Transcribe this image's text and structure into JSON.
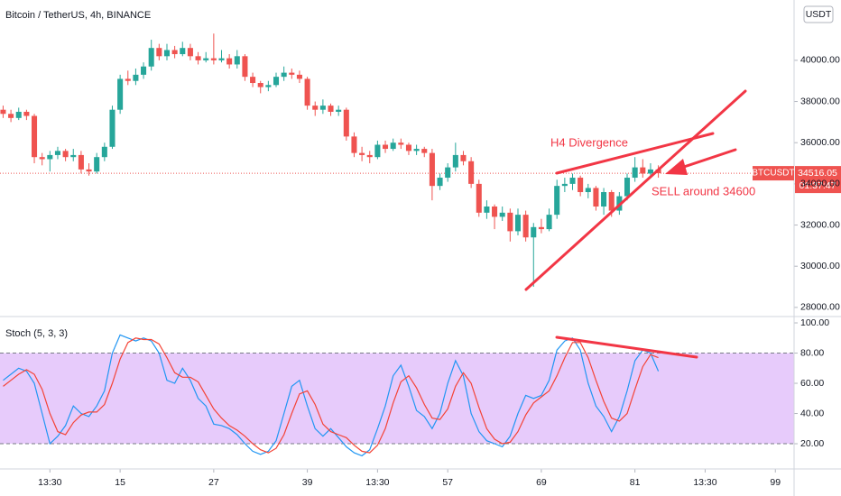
{
  "chart_data": [
    {
      "type": "candlestick",
      "title": "Bitcoin / TetherUS, 4h, BINANCE",
      "currency": "USDT",
      "symbol_tag": "BTCUSDT",
      "countdown": "01:37:47",
      "annotations": [
        "H4 Divergence",
        "SELL around 34600"
      ],
      "up_color": "#26a69a",
      "down_color": "#ef5350",
      "xlim": [
        -0.4,
        101.4
      ],
      "ylim": [
        27600,
        42930
      ],
      "yticks": [
        {
          "value": 28000,
          "label": "28000.00"
        },
        {
          "value": 30000,
          "label": "30000.00"
        },
        {
          "value": 32000,
          "label": "32000.00"
        },
        {
          "value": 34000,
          "label": "34000.00"
        },
        {
          "value": 36000,
          "label": "36000.00"
        },
        {
          "value": 38000,
          "label": "38000.00"
        },
        {
          "value": 40000,
          "label": "40000.00"
        }
      ],
      "candles": [
        [
          37600,
          37800,
          37200,
          37400
        ],
        [
          37400,
          37600,
          37000,
          37200
        ],
        [
          37200,
          37700,
          37100,
          37500
        ],
        [
          37500,
          37600,
          37100,
          37300
        ],
        [
          37300,
          37400,
          35000,
          35300
        ],
        [
          35300,
          35500,
          34900,
          35200
        ],
        [
          35200,
          35600,
          34600,
          35400
        ],
        [
          35400,
          35800,
          35200,
          35600
        ],
        [
          35600,
          35700,
          35100,
          35300
        ],
        [
          35300,
          35700,
          35100,
          35400
        ],
        [
          35400,
          35600,
          34500,
          34700
        ],
        [
          34700,
          35000,
          34400,
          34600
        ],
        [
          34600,
          35500,
          34500,
          35300
        ],
        [
          35300,
          36000,
          35100,
          35800
        ],
        [
          35800,
          37800,
          35700,
          37600
        ],
        [
          37600,
          39300,
          37400,
          39100
        ],
        [
          39100,
          39500,
          38800,
          39000
        ],
        [
          39000,
          39600,
          38800,
          39300
        ],
        [
          39300,
          39900,
          39100,
          39700
        ],
        [
          39700,
          41000,
          39500,
          40600
        ],
        [
          40600,
          40800,
          40000,
          40200
        ],
        [
          40200,
          40800,
          40000,
          40500
        ],
        [
          40500,
          40700,
          40100,
          40300
        ],
        [
          40300,
          40900,
          40200,
          40600
        ],
        [
          40600,
          40800,
          40000,
          40200
        ],
        [
          40200,
          40400,
          39800,
          40000
        ],
        [
          40000,
          40400,
          39900,
          40100
        ],
        [
          40100,
          41300,
          39800,
          40000
        ],
        [
          40000,
          40500,
          39900,
          40100
        ],
        [
          40100,
          40300,
          39600,
          39800
        ],
        [
          39800,
          40500,
          39600,
          40200
        ],
        [
          40200,
          40300,
          39000,
          39200
        ],
        [
          39200,
          39400,
          38700,
          38900
        ],
        [
          38900,
          39000,
          38400,
          38700
        ],
        [
          38700,
          39000,
          38500,
          38800
        ],
        [
          38800,
          39400,
          38700,
          39200
        ],
        [
          39200,
          39700,
          39000,
          39400
        ],
        [
          39400,
          39600,
          39100,
          39300
        ],
        [
          39300,
          39500,
          38900,
          39100
        ],
        [
          39100,
          39200,
          37600,
          37800
        ],
        [
          37800,
          38000,
          37300,
          37600
        ],
        [
          37600,
          38100,
          37400,
          37800
        ],
        [
          37800,
          37900,
          37300,
          37500
        ],
        [
          37500,
          37800,
          37300,
          37600
        ],
        [
          37600,
          37700,
          36100,
          36300
        ],
        [
          36300,
          36500,
          35300,
          35500
        ],
        [
          35500,
          35800,
          35100,
          35400
        ],
        [
          35400,
          35600,
          35000,
          35300
        ],
        [
          35300,
          36100,
          35200,
          35900
        ],
        [
          35900,
          36100,
          35500,
          35700
        ],
        [
          35700,
          36200,
          35600,
          36000
        ],
        [
          36000,
          36200,
          35700,
          35900
        ],
        [
          35900,
          36000,
          35400,
          35600
        ],
        [
          35600,
          35900,
          35400,
          35700
        ],
        [
          35700,
          35800,
          35300,
          35500
        ],
        [
          35500,
          35700,
          33200,
          33900
        ],
        [
          33900,
          34500,
          33700,
          34300
        ],
        [
          34300,
          35000,
          34100,
          34800
        ],
        [
          34800,
          36000,
          34600,
          35400
        ],
        [
          35400,
          35600,
          34900,
          35100
        ],
        [
          35100,
          35300,
          33800,
          34000
        ],
        [
          34000,
          34200,
          32400,
          32600
        ],
        [
          32600,
          33200,
          32300,
          32900
        ],
        [
          32900,
          33000,
          31800,
          32400
        ],
        [
          32400,
          32900,
          32200,
          32600
        ],
        [
          32600,
          32800,
          31200,
          31700
        ],
        [
          31700,
          32800,
          31500,
          32500
        ],
        [
          32500,
          32700,
          31200,
          31400
        ],
        [
          31400,
          32100,
          29000,
          31900
        ],
        [
          31900,
          32300,
          31600,
          31800
        ],
        [
          31800,
          32800,
          31700,
          32500
        ],
        [
          32500,
          34200,
          32300,
          33900
        ],
        [
          33900,
          34300,
          33600,
          34000
        ],
        [
          34000,
          34500,
          33700,
          34300
        ],
        [
          34300,
          34400,
          33400,
          33600
        ],
        [
          33600,
          34000,
          33300,
          33800
        ],
        [
          33800,
          33900,
          32700,
          32900
        ],
        [
          32900,
          33800,
          32500,
          33600
        ],
        [
          33600,
          33700,
          32400,
          32700
        ],
        [
          32700,
          33600,
          32500,
          33400
        ],
        [
          33400,
          34500,
          33200,
          34300
        ],
        [
          34300,
          35300,
          34100,
          34800
        ],
        [
          34800,
          35200,
          34300,
          34500
        ],
        [
          34500,
          35000,
          34300,
          34700
        ],
        [
          34700,
          34900,
          34300,
          34516.05
        ]
      ]
    },
    {
      "type": "line",
      "title": "Stoch (5, 3, 3)",
      "xlim": [
        -0.4,
        101.4
      ],
      "ylim": [
        3.3,
        103.6
      ],
      "band": [
        20,
        80
      ],
      "band_color": "#e7cbfb",
      "yticks": [
        {
          "value": 20,
          "label": "20.00"
        },
        {
          "value": 40,
          "label": "40.00"
        },
        {
          "value": 60,
          "label": "60.00"
        },
        {
          "value": 80,
          "label": "80.00"
        },
        {
          "value": 100,
          "label": "100.00"
        }
      ],
      "xticks": [
        {
          "value": 6,
          "label": "13:30"
        },
        15,
        27,
        39,
        {
          "value": 48,
          "label": "13:30"
        },
        57,
        69,
        81,
        {
          "value": 90,
          "label": "13:30"
        },
        99
      ],
      "series": [
        {
          "color": "#2196f3",
          "values": [
            62,
            66,
            70,
            68,
            60,
            40,
            20,
            25,
            32,
            45,
            40,
            38,
            45,
            55,
            80,
            92,
            90,
            88,
            90,
            88,
            80,
            62,
            60,
            70,
            62,
            50,
            45,
            33,
            32,
            30,
            26,
            20,
            15,
            13,
            15,
            22,
            40,
            58,
            62,
            45,
            30,
            25,
            30,
            24,
            18,
            14,
            12,
            16,
            30,
            45,
            65,
            72,
            58,
            42,
            38,
            30,
            40,
            60,
            75,
            65,
            40,
            28,
            22,
            20,
            18,
            25,
            40,
            52,
            50,
            52,
            62,
            82,
            88,
            90,
            82,
            60,
            45,
            38,
            28,
            38,
            55,
            75,
            82,
            80,
            68
          ]
        },
        {
          "color": "#f44336",
          "values": [
            58,
            62,
            66,
            69,
            66,
            56,
            40,
            28,
            26,
            34,
            39,
            41,
            41,
            46,
            60,
            76,
            87,
            90,
            89,
            89,
            86,
            77,
            67,
            64,
            64,
            61,
            52,
            43,
            37,
            32,
            29,
            25,
            20,
            16,
            14,
            17,
            26,
            40,
            53,
            55,
            46,
            33,
            28,
            26,
            24,
            19,
            15,
            14,
            19,
            30,
            47,
            61,
            65,
            57,
            46,
            37,
            36,
            43,
            58,
            67,
            60,
            44,
            30,
            23,
            20,
            21,
            28,
            39,
            47,
            51,
            55,
            65,
            77,
            87,
            87,
            77,
            62,
            48,
            37,
            35,
            40,
            56,
            71,
            79,
            77
          ]
        }
      ]
    }
  ]
}
